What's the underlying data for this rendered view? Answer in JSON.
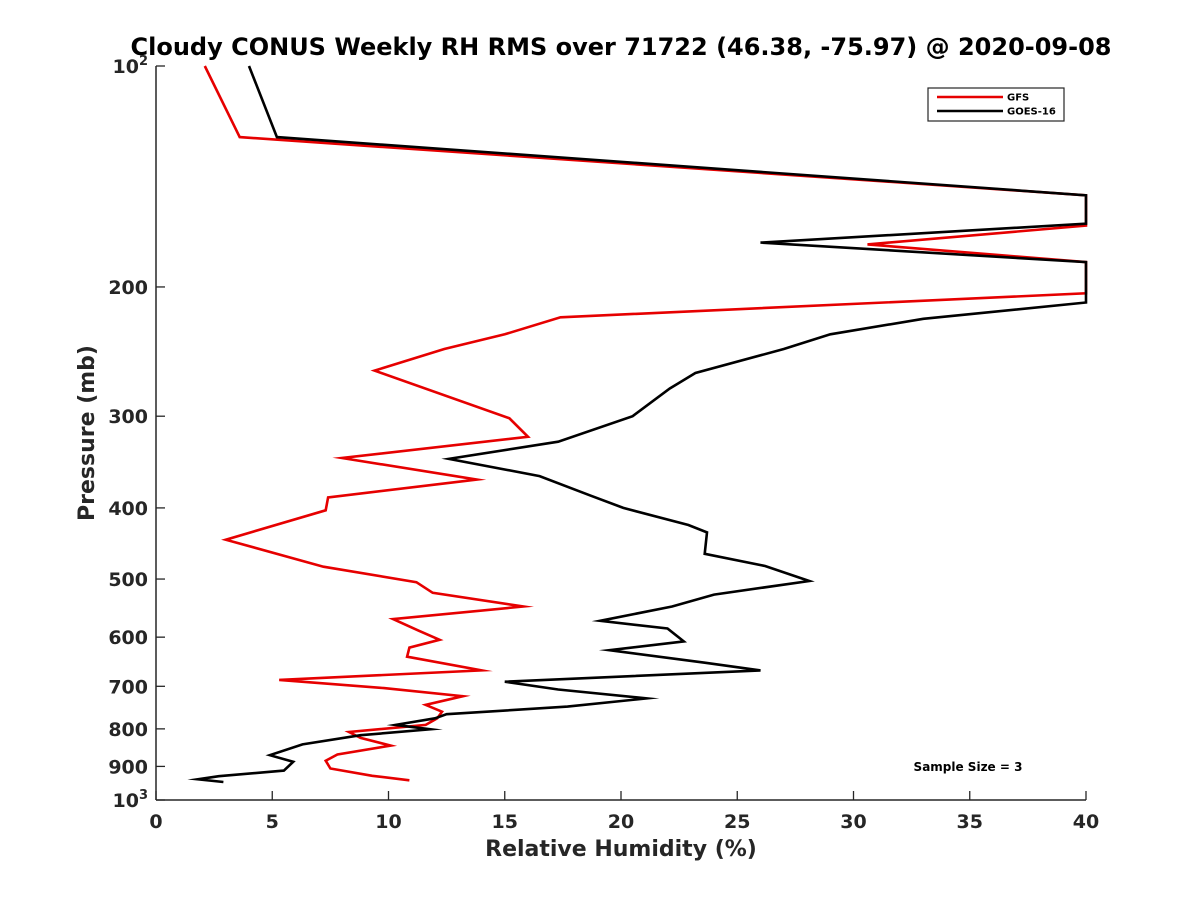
{
  "chart_data": {
    "type": "line",
    "title": "Cloudy CONUS Weekly RH RMS over 71722 (46.38, -75.97) @ 2020-09-08",
    "xlabel": "Relative Humidity (%)",
    "ylabel": "Pressure (mb)",
    "xlim": [
      0,
      40
    ],
    "ylim": [
      100,
      1000
    ],
    "y_scale": "log",
    "y_reversed": true,
    "x_ticks": [
      0,
      5,
      10,
      15,
      20,
      25,
      30,
      35,
      40
    ],
    "x_tick_labels": [
      "0",
      "5",
      "10",
      "15",
      "20",
      "25",
      "30",
      "35",
      "40"
    ],
    "y_ticks": [
      100,
      200,
      300,
      400,
      500,
      600,
      700,
      800,
      900,
      1000
    ],
    "y_tick_labels": [
      "10^2",
      "200",
      "300",
      "400",
      "500",
      "600",
      "700",
      "800",
      "900",
      "10^3"
    ],
    "grid": false,
    "legend_position": "top-right",
    "annotation": "Sample Size = 3",
    "series": [
      {
        "name": "GFS",
        "color": "#e60000",
        "points": [
          [
            2.1,
            100
          ],
          [
            3.6,
            125
          ],
          [
            40,
            150
          ],
          [
            40,
            165
          ],
          [
            30.6,
            175
          ],
          [
            40,
            185
          ],
          [
            40,
            204
          ],
          [
            17.4,
            220
          ],
          [
            15.0,
            232
          ],
          [
            12.4,
            243
          ],
          [
            9.4,
            260
          ],
          [
            15.2,
            302
          ],
          [
            16.0,
            320
          ],
          [
            8.0,
            342
          ],
          [
            13.8,
            366
          ],
          [
            7.4,
            387
          ],
          [
            7.3,
            403
          ],
          [
            3.0,
            442
          ],
          [
            7.2,
            481
          ],
          [
            11.2,
            505
          ],
          [
            11.9,
            522
          ],
          [
            15.8,
            545
          ],
          [
            10.2,
            567
          ],
          [
            11.3,
            588
          ],
          [
            12.2,
            605
          ],
          [
            10.9,
            620
          ],
          [
            10.8,
            638
          ],
          [
            14.0,
            666
          ],
          [
            5.3,
            686
          ],
          [
            9.8,
            704
          ],
          [
            13.2,
            722
          ],
          [
            11.6,
            742
          ],
          [
            12.3,
            758
          ],
          [
            12.1,
            774
          ],
          [
            11.6,
            790
          ],
          [
            8.3,
            808
          ],
          [
            8.8,
            823
          ],
          [
            10.1,
            843
          ],
          [
            7.8,
            867
          ],
          [
            7.3,
            884
          ],
          [
            7.5,
            906
          ],
          [
            9.3,
            927
          ],
          [
            10.9,
            940
          ]
        ]
      },
      {
        "name": "GOES-16",
        "color": "#000000",
        "points": [
          [
            4.0,
            100
          ],
          [
            5.2,
            125
          ],
          [
            40,
            150
          ],
          [
            40,
            164
          ],
          [
            26.0,
            174
          ],
          [
            40,
            185
          ],
          [
            40,
            210
          ],
          [
            33.0,
            221
          ],
          [
            29.0,
            232
          ],
          [
            27.0,
            243
          ],
          [
            23.2,
            262
          ],
          [
            22.1,
            275
          ],
          [
            20.5,
            300
          ],
          [
            17.3,
            325
          ],
          [
            12.6,
            343
          ],
          [
            16.5,
            362
          ],
          [
            18.7,
            385
          ],
          [
            20.1,
            400
          ],
          [
            22.9,
            422
          ],
          [
            23.7,
            432
          ],
          [
            23.6,
            462
          ],
          [
            26.2,
            480
          ],
          [
            28.1,
            503
          ],
          [
            24.0,
            525
          ],
          [
            22.2,
            545
          ],
          [
            19.1,
            570
          ],
          [
            22.0,
            584
          ],
          [
            22.7,
            608
          ],
          [
            19.5,
            625
          ],
          [
            23.6,
            650
          ],
          [
            26.0,
            666
          ],
          [
            15.0,
            690
          ],
          [
            17.3,
            707
          ],
          [
            21.1,
            727
          ],
          [
            17.7,
            746
          ],
          [
            12.5,
            764
          ],
          [
            12.0,
            774
          ],
          [
            10.3,
            790
          ],
          [
            11.8,
            801
          ],
          [
            8.8,
            816
          ],
          [
            6.3,
            840
          ],
          [
            4.9,
            869
          ],
          [
            5.9,
            887
          ],
          [
            5.5,
            912
          ],
          [
            2.7,
            928
          ],
          [
            1.8,
            937
          ],
          [
            2.9,
            945
          ]
        ]
      }
    ]
  }
}
